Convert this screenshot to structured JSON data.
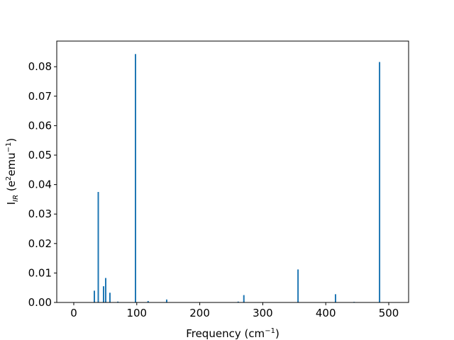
{
  "chart_data": {
    "type": "bar",
    "xlabel": {
      "text": "Frequency (cm",
      "sup": "−1",
      "end": ")"
    },
    "ylabel": {
      "base": "I",
      "sub": "IR",
      "mid": " (e",
      "sup1": "2",
      "mid2": "emu",
      "sup2": "−1",
      "end": ")"
    },
    "x": [
      32.7,
      38.9,
      47.3,
      50.7,
      57.4,
      70,
      98,
      118,
      147.5,
      261,
      270,
      356,
      415.5,
      445,
      485.4
    ],
    "values": [
      0.004,
      0.0375,
      0.0055,
      0.0083,
      0.0033,
      0.0003,
      0.0843,
      0.0005,
      0.001,
      0.0003,
      0.0025,
      0.0112,
      0.0028,
      0.0002,
      0.0816
    ],
    "color": "#1f77b4",
    "xlim": [
      -27,
      531.5
    ],
    "ylim": [
      0,
      0.0887
    ],
    "xticks": [
      0,
      100,
      200,
      300,
      400,
      500
    ],
    "yticks": [
      {
        "value": 0,
        "label": "0.00"
      },
      {
        "value": 0.01,
        "label": "0.01"
      },
      {
        "value": 0.02,
        "label": "0.02"
      },
      {
        "value": 0.03,
        "label": "0.03"
      },
      {
        "value": 0.04,
        "label": "0.04"
      },
      {
        "value": 0.05,
        "label": "0.05"
      },
      {
        "value": 0.06,
        "label": "0.06"
      },
      {
        "value": 0.07,
        "label": "0.07"
      },
      {
        "value": 0.08,
        "label": "0.08"
      }
    ]
  }
}
